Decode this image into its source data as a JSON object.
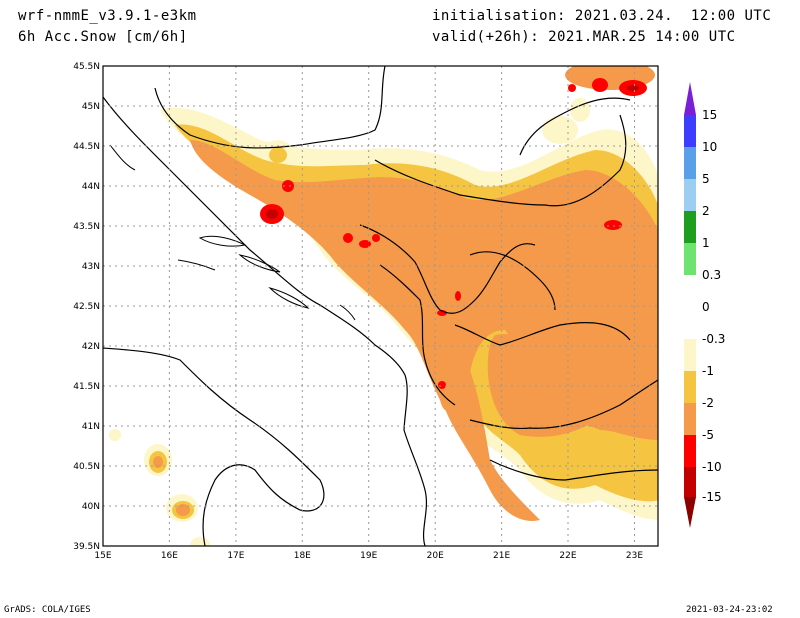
{
  "header": {
    "model": "wrf-nmmE_v3.9.1-e3km",
    "field": "6h Acc.Snow [cm/6h]",
    "init": "initialisation: 2021.03.24.  12:00 UTC",
    "valid": "valid(+26h): 2021.MAR.25 14:00 UTC"
  },
  "axes": {
    "lat_labels": [
      "45.5N",
      "45N",
      "44.5N",
      "44N",
      "43.5N",
      "43N",
      "42.5N",
      "42N",
      "41.5N",
      "41N",
      "40.5N",
      "40N",
      "39.5N"
    ],
    "lon_labels": [
      "15E",
      "16E",
      "17E",
      "18E",
      "19E",
      "20E",
      "21E",
      "22E",
      "23E"
    ],
    "lon_range": [
      15,
      23.3
    ],
    "lat_range": [
      39.5,
      45.5
    ],
    "grid": true
  },
  "colorbar": {
    "levels": [
      "15",
      "10",
      "5",
      "2",
      "1",
      "0.3",
      "0",
      "-0.3",
      "-1",
      "-2",
      "-5",
      "-10",
      "-15"
    ],
    "colors": [
      "#7a1fd6",
      "#3d3dff",
      "#5aa0e8",
      "#9ccef2",
      "#1e9e1e",
      "#6fe36f",
      "#ffffff",
      "#ffffff",
      "#fdf6c8",
      "#f5c542",
      "#f59a4a",
      "#ff0000",
      "#c30000",
      "#8b0000"
    ]
  },
  "footer": {
    "left": "GrADS: COLA/IGES",
    "right": "2021-03-24-23:02"
  }
}
